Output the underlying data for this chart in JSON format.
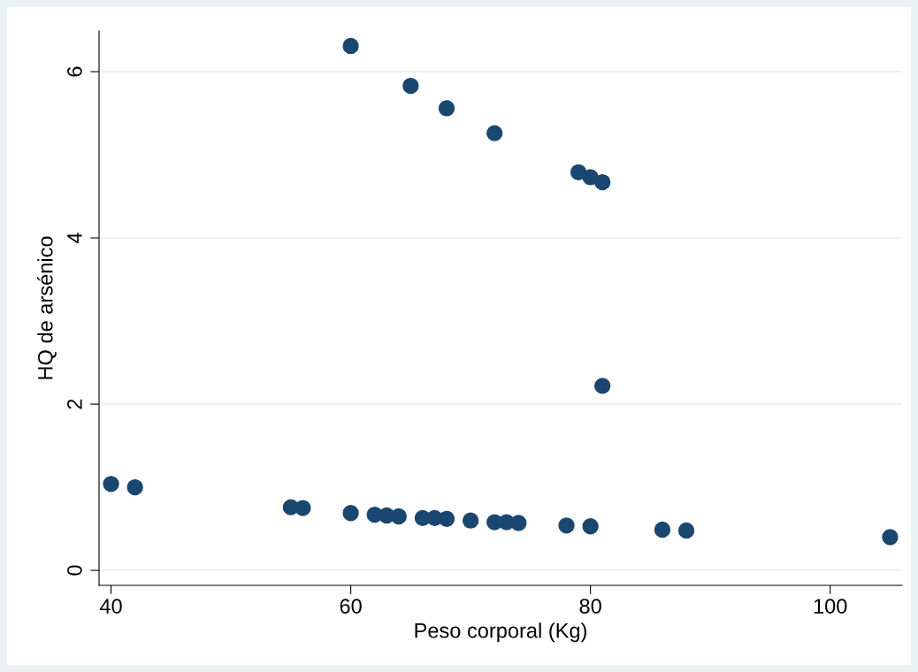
{
  "chart_data": {
    "type": "scatter",
    "xlabel": "Peso corporal (Kg)",
    "ylabel": "HQ de arsénico",
    "x": [
      60,
      65,
      68,
      72,
      79,
      80,
      81,
      81,
      40,
      42,
      55,
      56,
      60,
      62,
      63,
      64,
      66,
      67,
      68,
      70,
      72,
      73,
      74,
      78,
      80,
      86,
      88,
      105
    ],
    "series": [
      {
        "color": "#1a476f",
        "values": [
          6.31,
          5.83,
          5.56,
          5.26,
          4.79,
          4.73,
          4.67,
          2.22,
          1.04,
          1.0,
          0.76,
          0.75,
          0.69,
          0.67,
          0.66,
          0.65,
          0.63,
          0.63,
          0.62,
          0.6,
          0.58,
          0.58,
          0.57,
          0.54,
          0.53,
          0.49,
          0.48,
          0.4
        ]
      }
    ],
    "xlim": [
      39,
      106
    ],
    "xticks": [
      40,
      60,
      80,
      100
    ],
    "ylim": [
      -0.18,
      6.49
    ],
    "yticks": [
      0,
      2,
      4,
      6
    ],
    "grid": "y",
    "marker": "circle",
    "legend": false
  }
}
